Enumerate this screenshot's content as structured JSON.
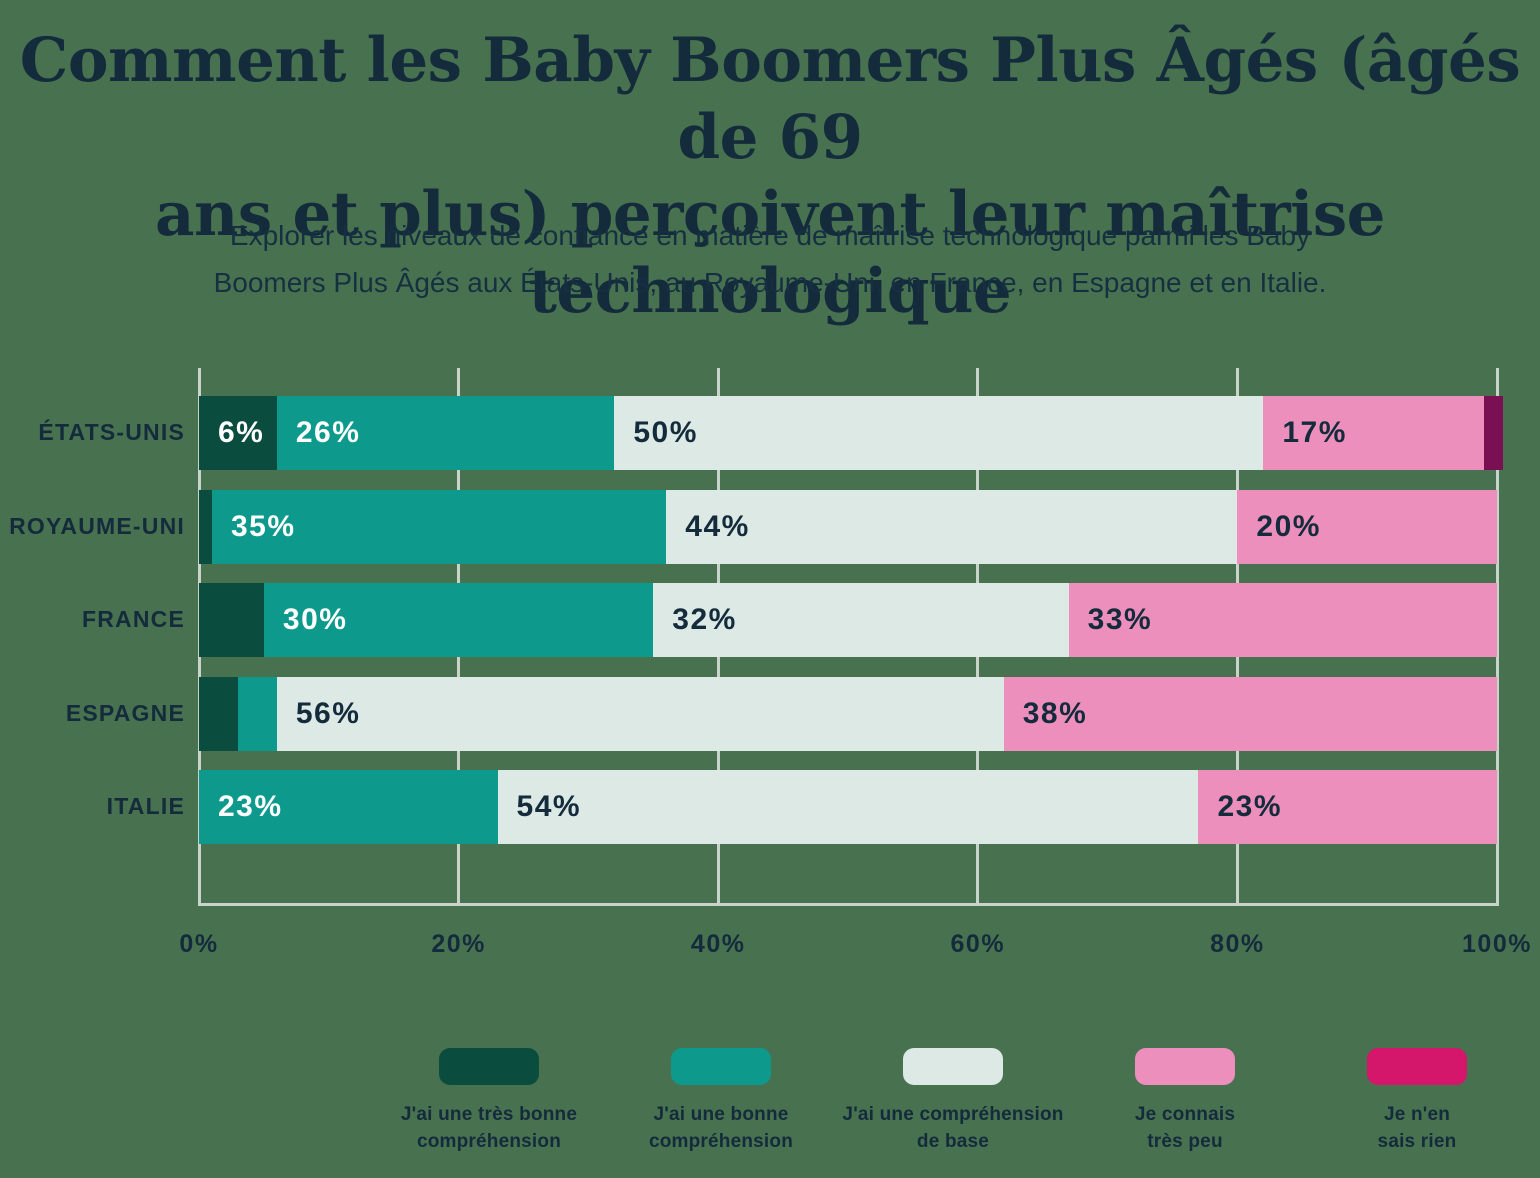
{
  "header": {
    "title_lines": [
      "Comment les Baby Boomers Plus Âgés (âgés de 69",
      "ans et plus) perçoivent leur maîtrise technologique"
    ],
    "subtitle_lines": [
      "Explorer les niveaux de confiance en matière de maîtrise technologique parmi les Baby",
      "Boomers Plus Âgés aux États-Unis, au Royaume-Uni, en France, en Espagne et en Italie."
    ]
  },
  "colors": {
    "background": "#487150",
    "text_navy": "#142b3c",
    "label_light": "#ffffff",
    "gridline": "#c8d4ca"
  },
  "chart_data": {
    "type": "bar",
    "stacked": true,
    "orientation": "horizontal",
    "grid": true,
    "legend_position": "bottom",
    "x_axis": {
      "min": 0,
      "max": 100,
      "ticks": [
        {
          "value": 0,
          "label": "0%"
        },
        {
          "value": 20,
          "label": "20%"
        },
        {
          "value": 40,
          "label": "40%"
        },
        {
          "value": 60,
          "label": "60%"
        },
        {
          "value": 80,
          "label": "80%"
        },
        {
          "value": 100,
          "label": "100%"
        }
      ]
    },
    "categories": [
      "ÉTATS-UNIS",
      "ROYAUME-UNI",
      "FRANCE",
      "ESPAGNE",
      "ITALIE"
    ],
    "series": [
      {
        "name": "J'ai une très bonne compréhension",
        "color": "#0a4c3d",
        "legend_color": "#0a4c3d",
        "legend_lines": [
          "J'ai une très bonne",
          "compréhension"
        ],
        "values": [
          6,
          1,
          5,
          3,
          0
        ]
      },
      {
        "name": "J'ai une bonne compréhension",
        "color": "#0d9a8d",
        "legend_color": "#0d9a8d",
        "legend_lines": [
          "J'ai une bonne",
          "compréhension"
        ],
        "values": [
          26,
          35,
          30,
          3,
          23
        ]
      },
      {
        "name": "J'ai une compréhension de base",
        "color": "#dce9e4",
        "legend_color": "#dce9e4",
        "legend_lines": [
          "J'ai une compréhension",
          "de base"
        ],
        "values": [
          50,
          44,
          32,
          56,
          54
        ]
      },
      {
        "name": "Je connais très peu",
        "color": "#ed8fbc",
        "legend_color": "#ed8fbc",
        "legend_lines": [
          "Je connais",
          "très peu"
        ],
        "values": [
          17,
          20,
          33,
          38,
          23
        ]
      },
      {
        "name": "Je n'en sais rien",
        "color": "#7a1053",
        "legend_color": "#d5176b",
        "legend_lines": [
          "Je n'en",
          "sais rien"
        ],
        "values": [
          1,
          0,
          0,
          0,
          0
        ]
      }
    ],
    "rows": [
      {
        "category": "ÉTATS-UNIS",
        "segments": [
          {
            "value": 6,
            "label": "6%"
          },
          {
            "value": 26,
            "label": "26%"
          },
          {
            "value": 50,
            "label": "50%"
          },
          {
            "value": 17,
            "label": "17%"
          },
          {
            "value": 1,
            "label": null
          }
        ]
      },
      {
        "category": "ROYAUME-UNI",
        "segments": [
          {
            "value": 1,
            "label": null
          },
          {
            "value": 35,
            "label": "35%"
          },
          {
            "value": 44,
            "label": "44%"
          },
          {
            "value": 20,
            "label": "20%"
          },
          {
            "value": 0,
            "label": null
          }
        ]
      },
      {
        "category": "FRANCE",
        "segments": [
          {
            "value": 5,
            "label": null
          },
          {
            "value": 30,
            "label": "30%"
          },
          {
            "value": 32,
            "label": "32%"
          },
          {
            "value": 33,
            "label": "33%"
          },
          {
            "value": 0,
            "label": null
          }
        ]
      },
      {
        "category": "ESPAGNE",
        "segments": [
          {
            "value": 3,
            "label": null
          },
          {
            "value": 3,
            "label": null
          },
          {
            "value": 56,
            "label": "56%"
          },
          {
            "value": 38,
            "label": "38%"
          },
          {
            "value": 0,
            "label": null
          }
        ]
      },
      {
        "category": "ITALIE",
        "segments": [
          {
            "value": 0,
            "label": null
          },
          {
            "value": 23,
            "label": "23%"
          },
          {
            "value": 54,
            "label": "54%"
          },
          {
            "value": 23,
            "label": "23%"
          },
          {
            "value": 0,
            "label": null
          }
        ]
      }
    ]
  }
}
